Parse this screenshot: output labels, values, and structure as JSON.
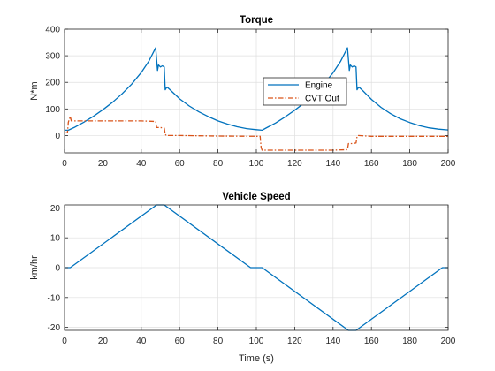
{
  "chart_data": [
    {
      "type": "line",
      "title": "Torque",
      "xlabel": "",
      "ylabel": "N*m",
      "xlim": [
        0,
        200
      ],
      "ylim": [
        -65,
        400
      ],
      "xticks": [
        0,
        20,
        40,
        60,
        80,
        100,
        120,
        140,
        160,
        180,
        200
      ],
      "yticks": [
        0,
        100,
        200,
        300,
        400
      ],
      "grid": true,
      "legend": "center-right",
      "series": [
        {
          "name": "Engine",
          "color": "#0072BD",
          "style": "solid",
          "x": [
            0,
            2,
            5,
            10,
            15,
            20,
            25,
            30,
            35,
            40,
            44,
            47.5,
            48,
            48.5,
            49,
            50,
            51,
            52,
            52.5,
            53,
            53.5,
            55,
            60,
            65,
            70,
            75,
            80,
            85,
            90,
            95,
            100,
            103,
            105,
            110,
            115,
            120,
            125,
            130,
            135,
            140,
            144,
            147.5,
            148,
            148.5,
            149,
            150,
            151,
            152,
            152.5,
            153,
            153.5,
            155,
            160,
            165,
            170,
            175,
            180,
            185,
            190,
            195,
            200
          ],
          "y": [
            20,
            20,
            30,
            50,
            72,
            97,
            125,
            157,
            193,
            237,
            280,
            330,
            285,
            245,
            265,
            258,
            262,
            258,
            172,
            178,
            182,
            172,
            138,
            111,
            89,
            71,
            55,
            43,
            33,
            26,
            22,
            20,
            28,
            47,
            70,
            95,
            123,
            155,
            192,
            236,
            280,
            330,
            285,
            245,
            265,
            258,
            262,
            258,
            172,
            178,
            182,
            172,
            136,
            106,
            82,
            63,
            49,
            37,
            29,
            24,
            21
          ]
        },
        {
          "name": "CVT Out",
          "color": "#D95319",
          "style": "dashdot",
          "x": [
            0,
            1.5,
            2,
            3,
            3.5,
            4,
            20,
            40,
            47.5,
            48,
            50,
            52,
            52.5,
            53,
            60,
            80,
            100,
            102,
            102.5,
            103,
            120,
            140,
            147.5,
            148,
            150,
            152,
            152.5,
            153,
            160,
            180,
            200
          ],
          "y": [
            10,
            10,
            50,
            72,
            55,
            55,
            55,
            55,
            53,
            30,
            30,
            28,
            5,
            0,
            0,
            -2,
            -3,
            -3,
            -45,
            -55,
            -55,
            -55,
            -53,
            -30,
            -30,
            -28,
            -5,
            0,
            -3,
            -3,
            -3
          ]
        }
      ]
    },
    {
      "type": "line",
      "title": "Vehicle Speed",
      "xlabel": "Time (s)",
      "ylabel": "km/hr",
      "xlim": [
        0,
        200
      ],
      "ylim": [
        -21,
        21
      ],
      "xticks": [
        0,
        20,
        40,
        60,
        80,
        100,
        120,
        140,
        160,
        180,
        200
      ],
      "yticks": [
        -20,
        -10,
        0,
        10,
        20
      ],
      "grid": true,
      "series": [
        {
          "color": "#0072BD",
          "style": "solid",
          "x": [
            0,
            3,
            48,
            52,
            97,
            103,
            148,
            152,
            197,
            200
          ],
          "y": [
            0,
            0,
            21,
            21,
            0,
            0,
            -21,
            -21,
            0,
            0
          ]
        }
      ]
    }
  ]
}
